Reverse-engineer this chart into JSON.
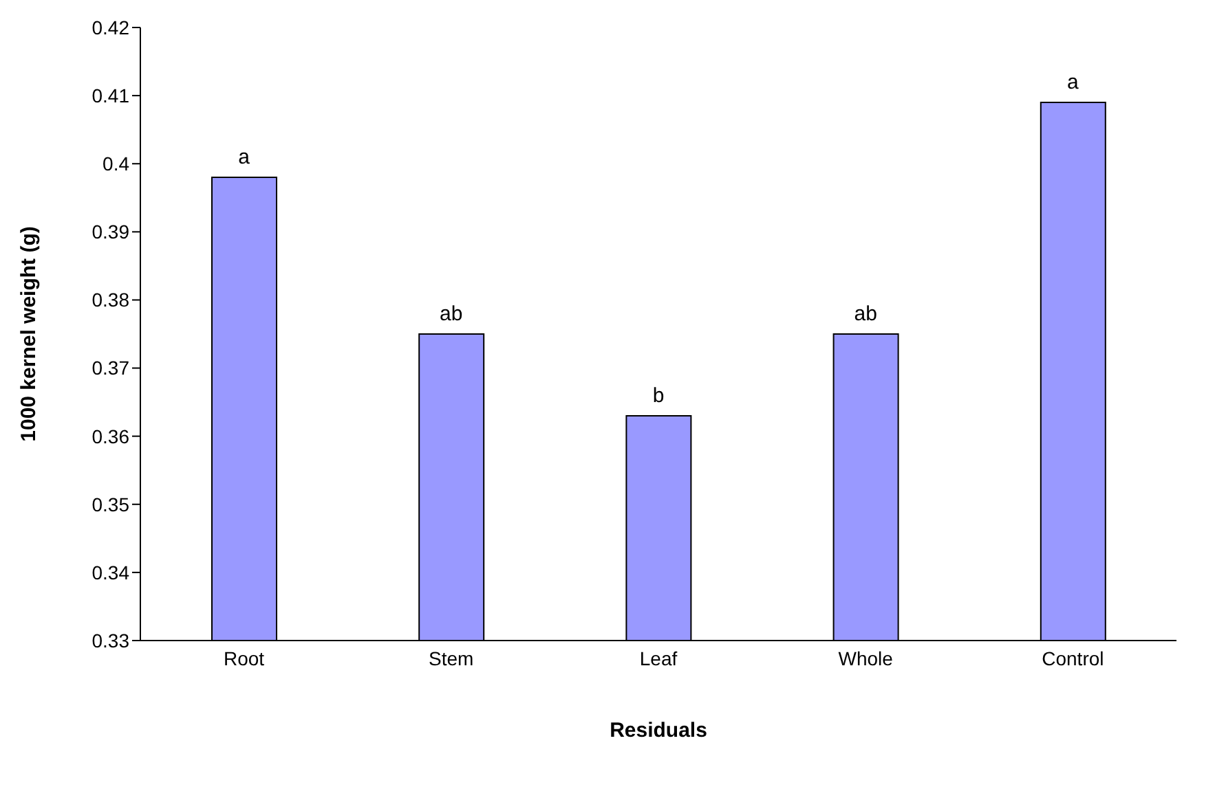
{
  "chart_data": {
    "type": "bar",
    "xlabel": "Residuals",
    "ylabel": "1000 kernel weight (g)",
    "categories": [
      "Root",
      "Stem",
      "Leaf",
      "Whole",
      "Control"
    ],
    "values": [
      0.398,
      0.375,
      0.363,
      0.375,
      0.409
    ],
    "color": "#9999ff",
    "ylim": [
      0.33,
      0.42
    ],
    "yticks": [
      0.33,
      0.34,
      0.35,
      0.36,
      0.37,
      0.38,
      0.39,
      0.4,
      0.41,
      0.42
    ],
    "grid": false,
    "legend": false,
    "annotations": [
      {
        "text": "a",
        "x": "Root",
        "y": 0.398
      },
      {
        "text": "ab",
        "x": "Stem",
        "y": 0.375
      },
      {
        "text": "b",
        "x": "Leaf",
        "y": 0.363
      },
      {
        "text": "ab",
        "x": "Whole",
        "y": 0.375
      },
      {
        "text": "a",
        "x": "Control",
        "y": 0.409
      }
    ]
  }
}
